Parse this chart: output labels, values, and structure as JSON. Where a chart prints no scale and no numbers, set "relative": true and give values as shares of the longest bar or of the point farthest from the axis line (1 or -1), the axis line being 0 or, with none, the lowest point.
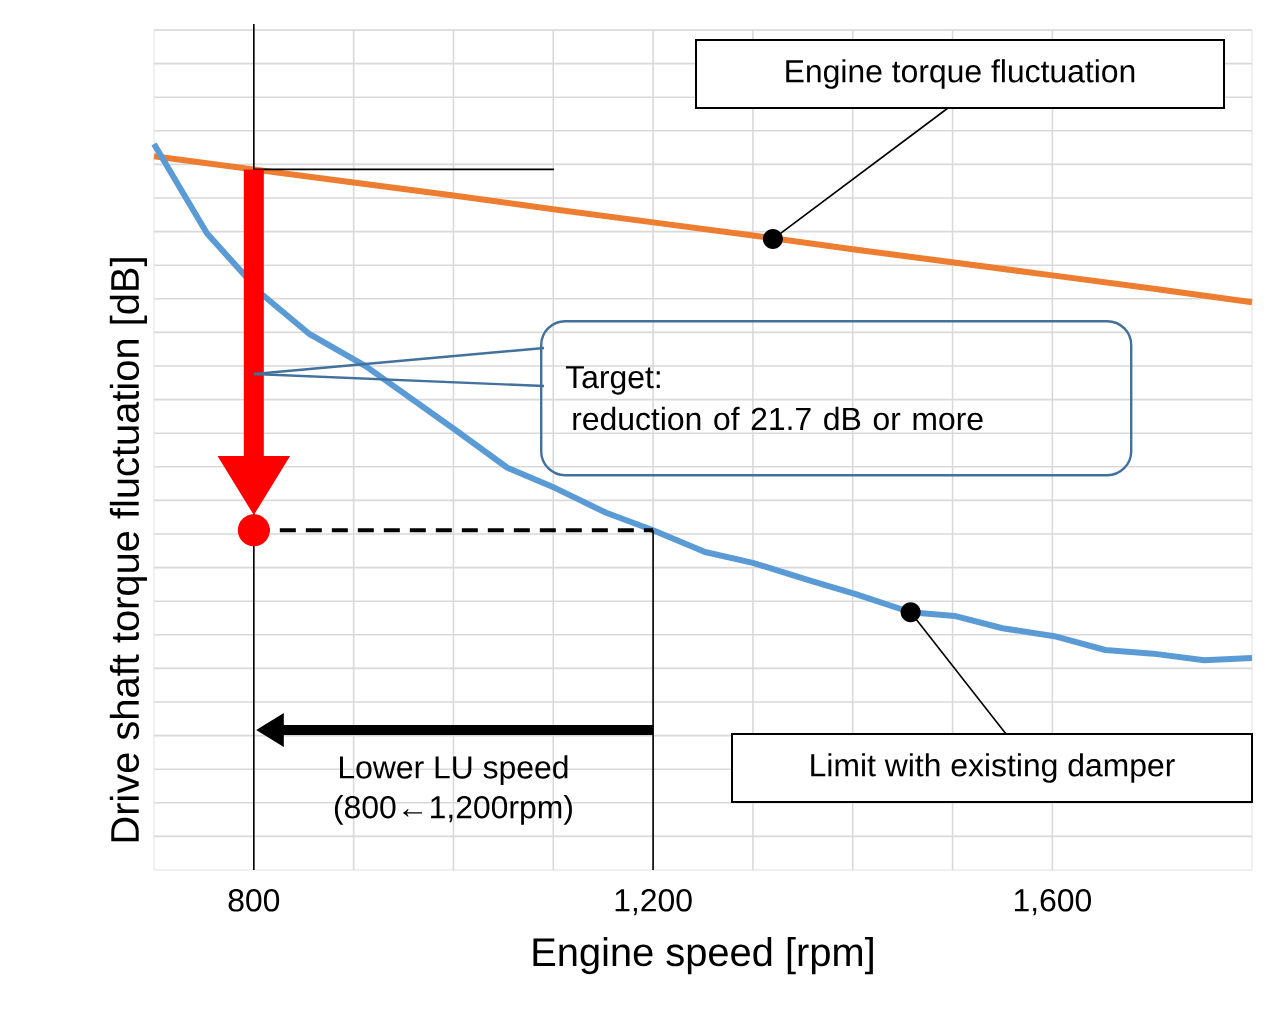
{
  "chart_data": {
    "type": "line",
    "xlabel": "Engine speed [rpm]",
    "ylabel": "Drive shaft torque fluctuation [dB]",
    "xlim": [
      700,
      1800
    ],
    "xticks": [
      {
        "value": 800,
        "label": "800"
      },
      {
        "value": 1200,
        "label": "1,200"
      },
      {
        "value": 1600,
        "label": "1,600"
      }
    ],
    "relative": true,
    "grid": true,
    "tick_labels": "x",
    "marker": "none",
    "line_style": "solid",
    "series": [
      {
        "name": "Engine torque fluctuation",
        "color": "#ed7d31",
        "x": [
          700,
          800,
          900,
          1000,
          1100,
          1200,
          1300,
          1400,
          1500,
          1600,
          1700,
          1800
        ],
        "values": [
          0.983,
          0.965,
          0.947,
          0.929,
          0.91,
          0.892,
          0.874,
          0.855,
          0.837,
          0.819,
          0.801,
          0.782
        ]
      },
      {
        "name": "Limit with existing damper",
        "color": "#5b9bd5",
        "x": [
          700,
          753,
          808,
          856,
          912,
          1002,
          1054,
          1102,
          1153,
          1200,
          1252,
          1300,
          1359,
          1403,
          1458,
          1502,
          1550,
          1602,
          1653,
          1701,
          1752,
          1800
        ],
        "values": [
          1.0,
          0.877,
          0.793,
          0.738,
          0.694,
          0.606,
          0.554,
          0.526,
          0.492,
          0.468,
          0.438,
          0.423,
          0.398,
          0.38,
          0.355,
          0.35,
          0.333,
          0.322,
          0.303,
          0.298,
          0.289,
          0.292
        ]
      }
    ],
    "ref_lines": [
      {
        "axis": "x",
        "value": 800
      },
      {
        "axis": "x",
        "value": 1200
      }
    ],
    "annotations": [
      "Target:",
      "reduction of 21.7 dB or more",
      "Lower LU speed",
      "(800←1,200rpm)"
    ]
  }
}
